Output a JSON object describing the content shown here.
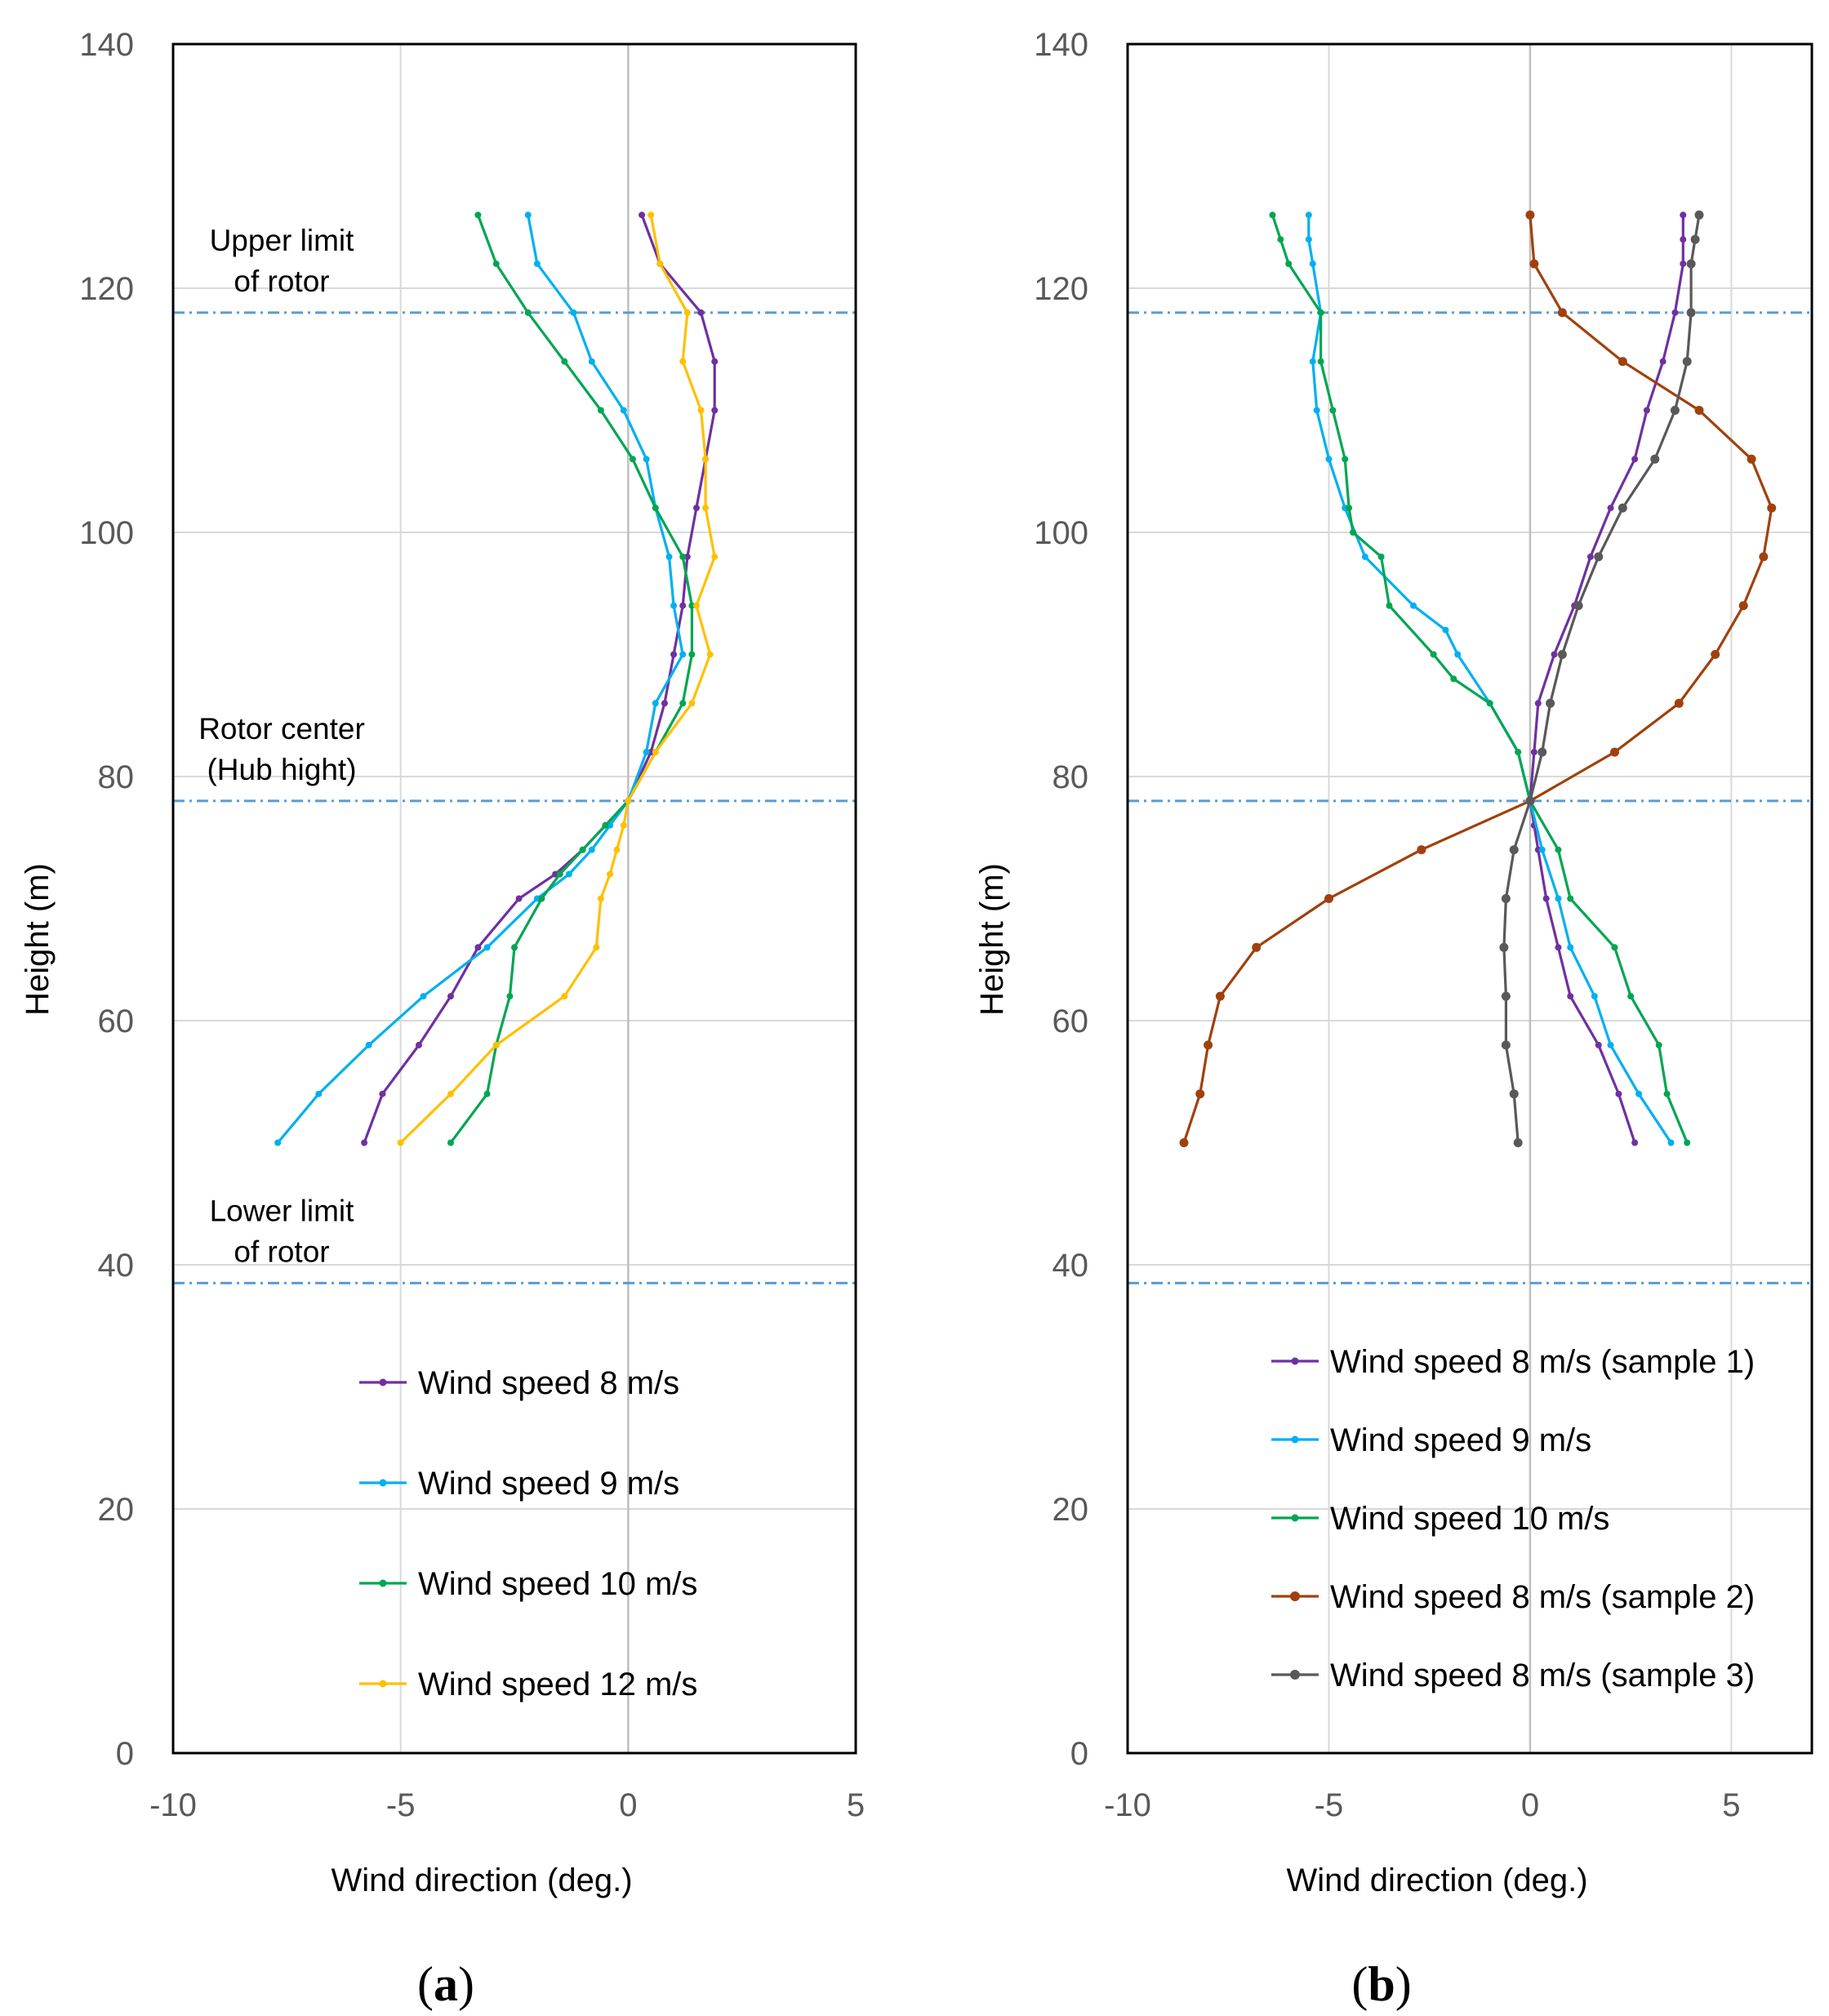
{
  "chart_data": [
    {
      "type": "line",
      "panel_label": "a",
      "xlabel": "Wind direction (deg.)",
      "ylabel": "Height (m)",
      "xlim": [
        -10,
        5
      ],
      "ylim": [
        0,
        140
      ],
      "xticks": [
        -10,
        -5,
        0,
        5
      ],
      "yticks": [
        0,
        20,
        40,
        60,
        80,
        100,
        120,
        140
      ],
      "grid": true,
      "legend_position": "lower-right",
      "limit_lines": [
        118,
        78,
        38.5
      ],
      "annotations": [
        {
          "height": 118,
          "lines": [
            "Upper limit",
            "of rotor"
          ]
        },
        {
          "height": 78,
          "lines": [
            "Rotor center",
            "(Hub hight)"
          ]
        },
        {
          "height": 38.5,
          "lines": [
            "Lower limit",
            "of rotor"
          ]
        }
      ],
      "series": [
        {
          "name": "Wind speed 8 m/s",
          "color": "#7030a0",
          "marker": "dot",
          "x": [
            -5.8,
            -5.4,
            -4.6,
            -3.9,
            -3.3,
            -2.4,
            -1.6,
            -1.0,
            -0.5,
            0.0,
            0.5,
            0.8,
            1.0,
            1.2,
            1.3,
            1.5,
            1.7,
            1.9,
            1.9,
            1.6,
            0.7,
            0.3
          ],
          "y": [
            50,
            54,
            58,
            62,
            66,
            70,
            72,
            74,
            76,
            78,
            82,
            86,
            90,
            94,
            98,
            102,
            106,
            110,
            114,
            118,
            122,
            126
          ]
        },
        {
          "name": "Wind speed 9 m/s",
          "color": "#00b0f0",
          "marker": "dot",
          "x": [
            -7.7,
            -6.8,
            -5.7,
            -4.5,
            -3.1,
            -2.0,
            -1.3,
            -0.8,
            -0.4,
            0.0,
            0.4,
            0.6,
            1.2,
            1.0,
            0.9,
            0.6,
            0.4,
            -0.1,
            -0.8,
            -1.2,
            -2.0,
            -2.2
          ],
          "y": [
            50,
            54,
            58,
            62,
            66,
            70,
            72,
            74,
            76,
            78,
            82,
            86,
            90,
            94,
            98,
            102,
            106,
            110,
            114,
            118,
            122,
            126
          ]
        },
        {
          "name": "Wind speed 10 m/s",
          "color": "#00a651",
          "marker": "dot",
          "x": [
            -3.9,
            -3.1,
            -2.9,
            -2.6,
            -2.5,
            -1.9,
            -1.5,
            -1.0,
            -0.5,
            0.0,
            0.6,
            1.2,
            1.4,
            1.4,
            1.2,
            0.6,
            0.1,
            -0.6,
            -1.4,
            -2.2,
            -2.9,
            -3.3
          ],
          "y": [
            50,
            54,
            58,
            62,
            66,
            70,
            72,
            74,
            76,
            78,
            82,
            86,
            90,
            94,
            98,
            102,
            106,
            110,
            114,
            118,
            122,
            126
          ]
        },
        {
          "name": "Wind speed 12 m/s",
          "color": "#ffc000",
          "marker": "dot",
          "x": [
            -5.0,
            -3.9,
            -2.9,
            -1.4,
            -0.7,
            -0.6,
            -0.4,
            -0.25,
            -0.1,
            0.0,
            0.6,
            1.4,
            1.8,
            1.5,
            1.9,
            1.7,
            1.7,
            1.6,
            1.2,
            1.3,
            0.7,
            0.5
          ],
          "y": [
            50,
            54,
            58,
            62,
            66,
            70,
            72,
            74,
            76,
            78,
            82,
            86,
            90,
            94,
            98,
            102,
            106,
            110,
            114,
            118,
            122,
            126
          ]
        }
      ]
    },
    {
      "type": "line",
      "panel_label": "b",
      "xlabel": "Wind direction (deg.)",
      "ylabel": "Height (m)",
      "xlim": [
        -10,
        7
      ],
      "ylim": [
        0,
        140
      ],
      "xticks": [
        -10,
        -5,
        0,
        5
      ],
      "yticks": [
        0,
        20,
        40,
        60,
        80,
        100,
        120,
        140
      ],
      "grid": true,
      "legend_position": "lower-right",
      "limit_lines": [
        118,
        78,
        38.5
      ],
      "series": [
        {
          "name": "Wind speed 8 m/s (sample 1)",
          "color": "#7030a0",
          "marker": "dot",
          "x": [
            2.6,
            2.2,
            1.7,
            1.0,
            0.7,
            0.4,
            0.2,
            0.1,
            0.0,
            0.1,
            0.2,
            0.6,
            1.1,
            1.5,
            2.0,
            2.6,
            2.9,
            3.3,
            3.6,
            3.8,
            3.8,
            3.8
          ],
          "y": [
            50,
            54,
            58,
            62,
            66,
            70,
            74,
            76,
            78,
            82,
            86,
            90,
            94,
            98,
            102,
            106,
            110,
            114,
            118,
            122,
            124,
            126
          ]
        },
        {
          "name": "Wind speed 9 m/s",
          "color": "#00b0f0",
          "marker": "dot",
          "x": [
            3.5,
            2.7,
            2.0,
            1.6,
            1.0,
            0.7,
            0.3,
            0.0,
            -0.3,
            -1.0,
            -1.8,
            -2.1,
            -2.9,
            -4.1,
            -4.6,
            -5.0,
            -5.3,
            -5.4,
            -5.2,
            -5.4,
            -5.5,
            -5.5
          ],
          "y": [
            50,
            54,
            58,
            62,
            66,
            70,
            74,
            78,
            82,
            86,
            90,
            92,
            94,
            98,
            102,
            106,
            110,
            114,
            118,
            122,
            124,
            126
          ]
        },
        {
          "name": "Wind speed 10 m/s",
          "color": "#00a651",
          "marker": "dot",
          "x": [
            3.9,
            3.4,
            3.2,
            2.5,
            2.1,
            1.0,
            0.7,
            0.0,
            -0.3,
            -1.0,
            -1.9,
            -2.4,
            -3.5,
            -3.7,
            -4.4,
            -4.5,
            -4.6,
            -4.9,
            -5.2,
            -5.2,
            -6.0,
            -6.2,
            -6.4
          ],
          "y": [
            50,
            54,
            58,
            62,
            66,
            70,
            74,
            78,
            82,
            86,
            88,
            90,
            94,
            98,
            100,
            102,
            106,
            110,
            114,
            118,
            122,
            124,
            126
          ]
        },
        {
          "name": "Wind speed 8 m/s (sample 2)",
          "color": "#a0410d",
          "marker": "dot",
          "x": [
            -8.6,
            -8.2,
            -8.0,
            -7.7,
            -6.8,
            -5.0,
            -2.7,
            0.0,
            2.1,
            3.7,
            4.6,
            5.3,
            5.8,
            6.0,
            5.5,
            4.2,
            2.3,
            0.8,
            0.1,
            0.0
          ],
          "y": [
            50,
            54,
            58,
            62,
            66,
            70,
            74,
            78,
            82,
            86,
            90,
            94,
            98,
            102,
            106,
            110,
            114,
            118,
            122,
            126
          ]
        },
        {
          "name": "Wind speed 8 m/s (sample 3)",
          "color": "#595959",
          "marker": "dot",
          "x": [
            -0.3,
            -0.4,
            -0.6,
            -0.6,
            -0.65,
            -0.6,
            -0.4,
            0.0,
            0.3,
            0.5,
            0.8,
            1.2,
            1.7,
            2.3,
            3.1,
            3.6,
            3.9,
            4.0,
            4.0,
            4.1,
            4.2
          ],
          "y": [
            50,
            54,
            58,
            62,
            66,
            70,
            74,
            78,
            82,
            86,
            90,
            94,
            98,
            102,
            106,
            110,
            114,
            118,
            122,
            124,
            126
          ]
        }
      ]
    }
  ]
}
